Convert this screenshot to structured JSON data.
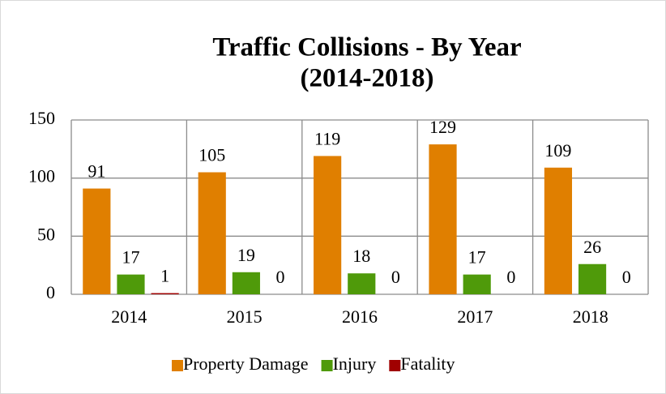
{
  "chart_data": {
    "type": "bar",
    "title": [
      "Traffic Collisions - By Year",
      "(2014-2018)"
    ],
    "categories": [
      "2014",
      "2015",
      "2016",
      "2017",
      "2018"
    ],
    "series": [
      {
        "name": "Property Damage",
        "color": "#e07f00",
        "values": [
          91,
          105,
          119,
          129,
          109
        ]
      },
      {
        "name": "Injury",
        "color": "#4f9a0a",
        "values": [
          17,
          19,
          18,
          17,
          26
        ]
      },
      {
        "name": "Fatality",
        "color": "#a00000",
        "values": [
          1,
          0,
          0,
          0,
          0
        ]
      }
    ],
    "ylim": [
      0,
      150
    ],
    "yticks": [
      0,
      50,
      100,
      150
    ],
    "grid": true,
    "legend": "bottom"
  }
}
